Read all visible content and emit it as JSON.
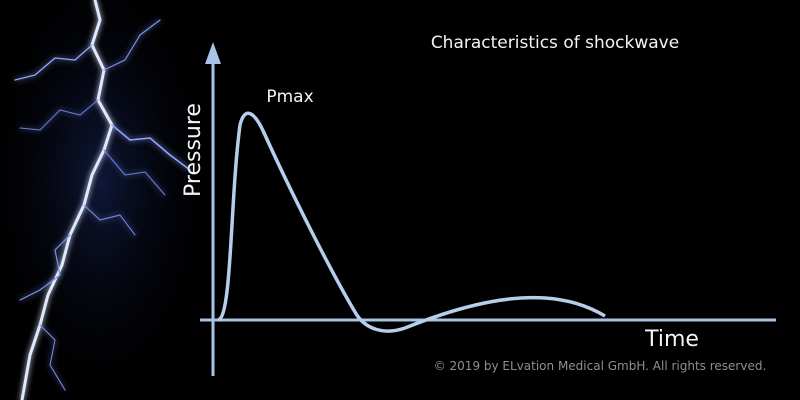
{
  "title": "Characteristics of shockwave",
  "peak_label": "Pmax",
  "y_axis_label": "Pressure",
  "x_axis_label": "Time",
  "copyright": "© 2019 by ELvation Medical GmbH. All rights reserved."
}
